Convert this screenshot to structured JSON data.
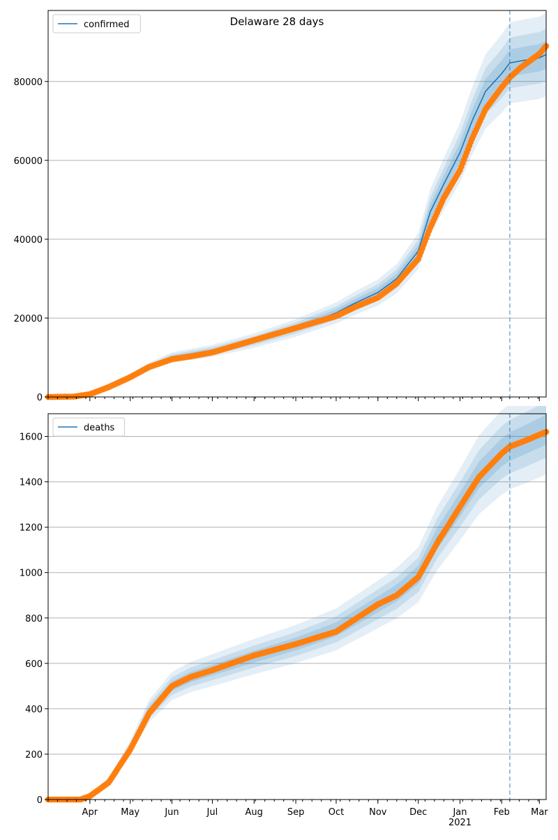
{
  "figure": {
    "title": "Delaware 28 days"
  },
  "colors": {
    "model": "#1f77b4",
    "observed": "#ff7f0e",
    "band": "#1f77b4",
    "grid": "#b0b0b0",
    "forecast_line": "#1f77b4"
  },
  "x_axis": {
    "month_labels": [
      "Apr",
      "May",
      "Jun",
      "Jul",
      "Aug",
      "Sep",
      "Oct",
      "Nov",
      "Dec",
      "Jan",
      "Feb",
      "Mar"
    ],
    "year_label": "2021",
    "start_date": "2020-03-01",
    "end_date": "2021-03-06",
    "forecast_start": "2021-02-07"
  },
  "chart_data": [
    {
      "type": "line",
      "legend": "confirmed",
      "legend_position": "top-left",
      "grid": true,
      "ylim": [
        0,
        98000
      ],
      "yticks": [
        0,
        20000,
        40000,
        60000,
        80000
      ],
      "model_points": [
        [
          "2020-03-01",
          0
        ],
        [
          "2020-03-20",
          200
        ],
        [
          "2020-04-01",
          900
        ],
        [
          "2020-04-15",
          3000
        ],
        [
          "2020-05-01",
          5300
        ],
        [
          "2020-05-15",
          7700
        ],
        [
          "2020-06-01",
          10000
        ],
        [
          "2020-06-15",
          10800
        ],
        [
          "2020-07-01",
          11700
        ],
        [
          "2020-08-01",
          14300
        ],
        [
          "2020-09-01",
          17500
        ],
        [
          "2020-10-01",
          21300
        ],
        [
          "2020-10-15",
          23800
        ],
        [
          "2020-11-01",
          26500
        ],
        [
          "2020-11-15",
          30000
        ],
        [
          "2020-12-01",
          37000
        ],
        [
          "2020-12-10",
          47000
        ],
        [
          "2020-12-20",
          54000
        ],
        [
          "2021-01-01",
          62000
        ],
        [
          "2021-01-10",
          70000
        ],
        [
          "2021-01-20",
          77500
        ],
        [
          "2021-02-01",
          82000
        ],
        [
          "2021-02-07",
          84700
        ],
        [
          "2021-02-15",
          85200
        ],
        [
          "2021-03-01",
          86000
        ],
        [
          "2021-03-06",
          86800
        ]
      ],
      "observed_points": [
        [
          "2020-03-01",
          0
        ],
        [
          "2020-03-20",
          100
        ],
        [
          "2020-04-01",
          700
        ],
        [
          "2020-04-15",
          2500
        ],
        [
          "2020-05-01",
          5000
        ],
        [
          "2020-05-15",
          7600
        ],
        [
          "2020-06-01",
          9600
        ],
        [
          "2020-06-15",
          10300
        ],
        [
          "2020-07-01",
          11300
        ],
        [
          "2020-08-01",
          14400
        ],
        [
          "2020-09-01",
          17500
        ],
        [
          "2020-10-01",
          20500
        ],
        [
          "2020-10-15",
          22800
        ],
        [
          "2020-11-01",
          25200
        ],
        [
          "2020-11-15",
          28800
        ],
        [
          "2020-12-01",
          35000
        ],
        [
          "2020-12-10",
          43000
        ],
        [
          "2020-12-20",
          50500
        ],
        [
          "2021-01-01",
          57500
        ],
        [
          "2021-01-10",
          65500
        ],
        [
          "2021-01-20",
          73000
        ],
        [
          "2021-02-01",
          78500
        ],
        [
          "2021-02-07",
          81000
        ],
        [
          "2021-02-15",
          83500
        ],
        [
          "2021-03-01",
          87000
        ],
        [
          "2021-03-06",
          89000
        ]
      ]
    },
    {
      "type": "line",
      "legend": "deaths",
      "legend_position": "top-left",
      "grid": true,
      "ylim": [
        0,
        1700
      ],
      "yticks": [
        0,
        200,
        400,
        600,
        800,
        1000,
        1200,
        1400,
        1600
      ],
      "model_points": [
        [
          "2020-03-01",
          0
        ],
        [
          "2020-03-25",
          5
        ],
        [
          "2020-04-01",
          20
        ],
        [
          "2020-04-15",
          85
        ],
        [
          "2020-05-01",
          230
        ],
        [
          "2020-05-15",
          390
        ],
        [
          "2020-06-01",
          500
        ],
        [
          "2020-06-15",
          540
        ],
        [
          "2020-07-01",
          570
        ],
        [
          "2020-08-01",
          630
        ],
        [
          "2020-09-01",
          685
        ],
        [
          "2020-10-01",
          750
        ],
        [
          "2020-11-01",
          860
        ],
        [
          "2020-11-15",
          910
        ],
        [
          "2020-12-01",
          990
        ],
        [
          "2020-12-15",
          1150
        ],
        [
          "2021-01-01",
          1300
        ],
        [
          "2021-01-15",
          1430
        ],
        [
          "2021-02-01",
          1530
        ],
        [
          "2021-02-07",
          1555
        ],
        [
          "2021-02-20",
          1590
        ],
        [
          "2021-03-06",
          1630
        ]
      ],
      "observed_points": [
        [
          "2020-03-01",
          0
        ],
        [
          "2020-03-25",
          0
        ],
        [
          "2020-04-01",
          15
        ],
        [
          "2020-04-15",
          75
        ],
        [
          "2020-05-01",
          220
        ],
        [
          "2020-05-15",
          380
        ],
        [
          "2020-06-01",
          500
        ],
        [
          "2020-06-15",
          540
        ],
        [
          "2020-07-01",
          570
        ],
        [
          "2020-08-01",
          635
        ],
        [
          "2020-09-01",
          685
        ],
        [
          "2020-10-01",
          740
        ],
        [
          "2020-11-01",
          860
        ],
        [
          "2020-11-15",
          900
        ],
        [
          "2020-12-01",
          980
        ],
        [
          "2020-12-15",
          1130
        ],
        [
          "2021-01-01",
          1290
        ],
        [
          "2021-01-15",
          1420
        ],
        [
          "2021-02-01",
          1525
        ],
        [
          "2021-02-07",
          1555
        ],
        [
          "2021-02-20",
          1585
        ],
        [
          "2021-03-06",
          1620
        ]
      ]
    }
  ]
}
